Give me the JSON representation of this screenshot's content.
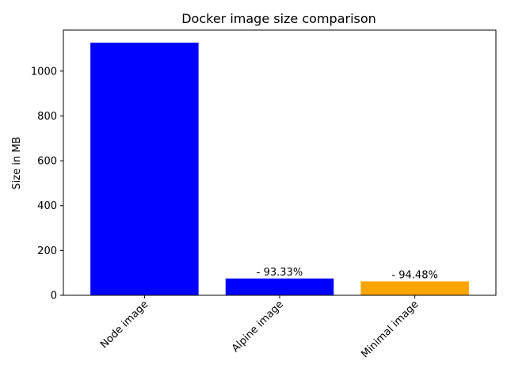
{
  "chart_data": {
    "type": "bar",
    "title": "Docker image size comparison",
    "xlabel": "",
    "ylabel": "Size in MB",
    "categories": [
      "Node image",
      "Alpine image",
      "Minimal image"
    ],
    "values": [
      1127,
      75,
      62
    ],
    "colors": [
      "#0000ff",
      "#0000ff",
      "#ffa500"
    ],
    "data_labels": [
      "",
      "- 93.33%",
      "- 94.48%"
    ],
    "ylim": [
      0,
      1183
    ],
    "yticks": [
      0,
      200,
      400,
      600,
      800,
      1000
    ],
    "grid": false,
    "x_tick_rotation": 45
  }
}
